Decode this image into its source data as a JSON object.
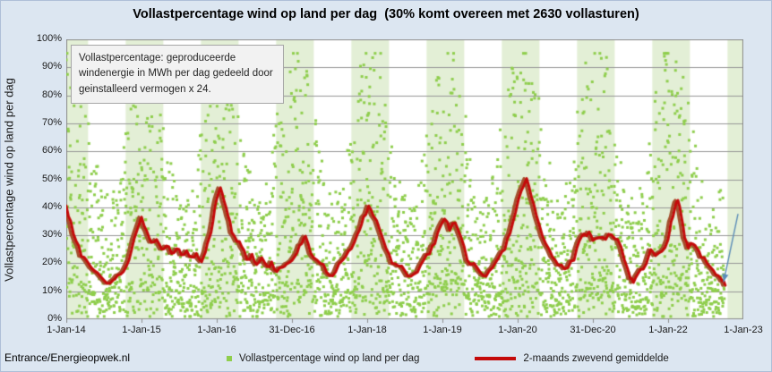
{
  "title": "Vollastpercentage wind op land per dag  (30% komt overeen met 2630 vollasturen)",
  "y_axis_title": "Vollastpercentage wind op land per dag",
  "source_label": "Entrance/Energieopwek.nl",
  "annotation_box": {
    "text": "Vollastpercentage: geproduceerde windenergie in MWh per dag gedeeld door geinstalleerd vermogen x 24."
  },
  "legend": {
    "scatter_label": "Vollastpercentage wind op land per dag",
    "line_label": "2-maands zwevend gemiddelde"
  },
  "colors": {
    "background": "#dce6f1",
    "plot_background": "#ffffff",
    "winter_band": "#e3efd6",
    "gridline": "#969696",
    "plot_border": "#8c8c8c",
    "scatter_green": "#8fce4d",
    "line_red": "#c40a0a",
    "line_red_shadow": "#a4502e",
    "arrow_blue": "#5b8db8"
  },
  "chart_data": {
    "type": "scatter",
    "title": "Vollastpercentage wind op land per dag  (30% komt overeen met 2630 vollasturen)",
    "xlabel": "",
    "ylabel": "Vollastpercentage wind op land per dag",
    "ylim": [
      0,
      100
    ],
    "y_tick_step": 10,
    "y_tick_labels": [
      "0%",
      "10%",
      "20%",
      "30%",
      "40%",
      "50%",
      "60%",
      "70%",
      "80%",
      "90%",
      "100%"
    ],
    "x_span_years": 9,
    "x_tick_labels": [
      "1-Jan-14",
      "1-Jan-15",
      "1-Jan-16",
      "31-Dec-16",
      "1-Jan-18",
      "1-Jan-19",
      "1-Jan-20",
      "31-Dec-20",
      "1-Jan-22",
      "1-Jan-23"
    ],
    "grid": true,
    "legend_position": "bottom",
    "winter_bands": {
      "offset_years": 0.79,
      "width_years": 0.5,
      "period_years": 1
    },
    "series": [
      {
        "name": "Vollastpercentage wind op land per dag",
        "type": "scatter-daily-generated",
        "marker": "square",
        "point_size": 3,
        "count": 3195,
        "span_years": 8.75,
        "value_range": [
          1,
          95
        ],
        "seasonality": "winter-high",
        "seed": 12345
      },
      {
        "name": "2-maands zwevend gemiddelde",
        "type": "line",
        "width": 3,
        "jaggedness": 1.1,
        "points": [
          [
            0.0,
            40.5
          ],
          [
            0.06,
            35
          ],
          [
            0.13,
            28
          ],
          [
            0.2,
            22.5
          ],
          [
            0.27,
            21
          ],
          [
            0.33,
            18.5
          ],
          [
            0.42,
            16.5
          ],
          [
            0.5,
            14
          ],
          [
            0.58,
            12.8
          ],
          [
            0.65,
            14.5
          ],
          [
            0.72,
            16
          ],
          [
            0.8,
            19
          ],
          [
            0.87,
            25
          ],
          [
            0.93,
            31
          ],
          [
            1.0,
            36.5
          ],
          [
            1.07,
            31.5
          ],
          [
            1.13,
            27.5
          ],
          [
            1.2,
            28.5
          ],
          [
            1.27,
            25
          ],
          [
            1.33,
            26.2
          ],
          [
            1.4,
            23.5
          ],
          [
            1.47,
            25.2
          ],
          [
            1.53,
            23
          ],
          [
            1.6,
            24.5
          ],
          [
            1.67,
            22.3
          ],
          [
            1.73,
            23.5
          ],
          [
            1.8,
            20.5
          ],
          [
            1.85,
            24
          ],
          [
            1.9,
            29
          ],
          [
            1.95,
            35
          ],
          [
            2.0,
            43
          ],
          [
            2.05,
            47
          ],
          [
            2.1,
            42
          ],
          [
            2.15,
            37
          ],
          [
            2.2,
            31
          ],
          [
            2.27,
            27.8
          ],
          [
            2.33,
            26
          ],
          [
            2.4,
            21.5
          ],
          [
            2.47,
            23.2
          ],
          [
            2.53,
            19.5
          ],
          [
            2.6,
            22
          ],
          [
            2.67,
            19
          ],
          [
            2.73,
            20.5
          ],
          [
            2.8,
            17
          ],
          [
            2.87,
            18.5
          ],
          [
            2.93,
            19.8
          ],
          [
            3.0,
            21
          ],
          [
            3.07,
            23.8
          ],
          [
            3.13,
            27
          ],
          [
            3.18,
            29.7
          ],
          [
            3.25,
            23.5
          ],
          [
            3.33,
            21.2
          ],
          [
            3.42,
            19.5
          ],
          [
            3.5,
            15.7
          ],
          [
            3.58,
            16.9
          ],
          [
            3.67,
            21
          ],
          [
            3.75,
            24.3
          ],
          [
            3.83,
            27.5
          ],
          [
            3.9,
            32
          ],
          [
            3.95,
            36.5
          ],
          [
            4.02,
            40.5
          ],
          [
            4.08,
            37
          ],
          [
            4.17,
            31.7
          ],
          [
            4.25,
            25.3
          ],
          [
            4.33,
            20
          ],
          [
            4.42,
            18.9
          ],
          [
            4.5,
            17.3
          ],
          [
            4.58,
            15.3
          ],
          [
            4.67,
            16.9
          ],
          [
            4.75,
            21.1
          ],
          [
            4.83,
            23.3
          ],
          [
            4.9,
            27
          ],
          [
            4.97,
            33
          ],
          [
            5.03,
            35.8
          ],
          [
            5.1,
            31.7
          ],
          [
            5.17,
            34.5
          ],
          [
            5.25,
            29.1
          ],
          [
            5.33,
            21.1
          ],
          [
            5.42,
            20
          ],
          [
            5.5,
            16.9
          ],
          [
            5.58,
            15.3
          ],
          [
            5.67,
            18.5
          ],
          [
            5.75,
            22.1
          ],
          [
            5.83,
            24.9
          ],
          [
            5.9,
            30.7
          ],
          [
            5.97,
            38
          ],
          [
            6.05,
            46
          ],
          [
            6.12,
            50.3
          ],
          [
            6.18,
            44
          ],
          [
            6.25,
            37
          ],
          [
            6.33,
            29.7
          ],
          [
            6.42,
            24.9
          ],
          [
            6.5,
            21.1
          ],
          [
            6.58,
            19.5
          ],
          [
            6.67,
            18.5
          ],
          [
            6.75,
            21.1
          ],
          [
            6.82,
            28
          ],
          [
            6.88,
            30.5
          ],
          [
            6.95,
            31.2
          ],
          [
            7.0,
            28.1
          ],
          [
            7.08,
            29.1
          ],
          [
            7.17,
            28.5
          ],
          [
            7.25,
            30.1
          ],
          [
            7.33,
            28.5
          ],
          [
            7.42,
            21.1
          ],
          [
            7.5,
            14.5
          ],
          [
            7.54,
            13.1
          ],
          [
            7.6,
            16.3
          ],
          [
            7.67,
            17.9
          ],
          [
            7.75,
            23.3
          ],
          [
            7.79,
            24.3
          ],
          [
            7.83,
            22.7
          ],
          [
            7.92,
            24.3
          ],
          [
            8.0,
            28.5
          ],
          [
            8.04,
            34.9
          ],
          [
            8.09,
            39.7
          ],
          [
            8.13,
            42.5
          ],
          [
            8.18,
            36.1
          ],
          [
            8.22,
            29.1
          ],
          [
            8.27,
            25.3
          ],
          [
            8.33,
            26.9
          ],
          [
            8.38,
            25.5
          ],
          [
            8.44,
            22.1
          ],
          [
            8.52,
            20
          ],
          [
            8.6,
            17.5
          ],
          [
            8.67,
            15.5
          ],
          [
            8.72,
            13.7
          ],
          [
            8.76,
            12.1
          ]
        ]
      }
    ],
    "annotation_arrow": {
      "from": {
        "x_frac": 0.992,
        "y_pct": 37.5
      },
      "to": {
        "x_frac": 0.971,
        "y_pct": 13.5
      }
    }
  }
}
